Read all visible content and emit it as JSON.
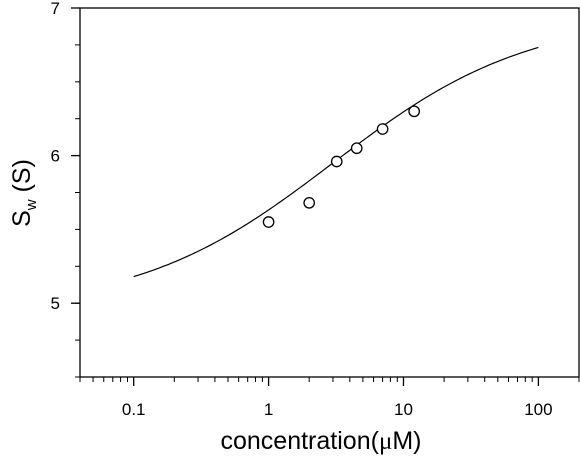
{
  "chart_data": {
    "type": "scatter",
    "title": "",
    "xlabel": "concentration(μM)",
    "xlabel_parts": {
      "prefix": "concentration(",
      "unit": "μ",
      "suffix": "M)"
    },
    "ylabel": "Sw (S)",
    "ylabel_parts": {
      "main": "S",
      "sub": "w",
      "unit": " (S)"
    },
    "x_scale": "log",
    "xlim": [
      0.04,
      200
    ],
    "ylim": [
      4.5,
      7
    ],
    "x_ticks": [
      {
        "value": 0.1,
        "label": "0.1"
      },
      {
        "value": 1,
        "label": "1"
      },
      {
        "value": 10,
        "label": "10"
      },
      {
        "value": 100,
        "label": "100"
      }
    ],
    "y_ticks": [
      {
        "value": 5,
        "label": "5"
      },
      {
        "value": 6,
        "label": "6"
      },
      {
        "value": 7,
        "label": "7"
      }
    ],
    "y_minor_step": 0.25,
    "grid": false,
    "legend": "none",
    "series": [
      {
        "kind": "points",
        "marker": "open-circle",
        "x": [
          1.0,
          2.0,
          3.2,
          4.5,
          7.0,
          12.0
        ],
        "y": [
          5.55,
          5.68,
          5.96,
          6.05,
          6.18,
          6.3
        ]
      },
      {
        "kind": "line",
        "fit": {
          "bottom": 4.95,
          "top": 6.95,
          "ec50": 3.0,
          "hill": 0.6
        },
        "x_range": [
          0.1,
          100
        ]
      }
    ]
  }
}
